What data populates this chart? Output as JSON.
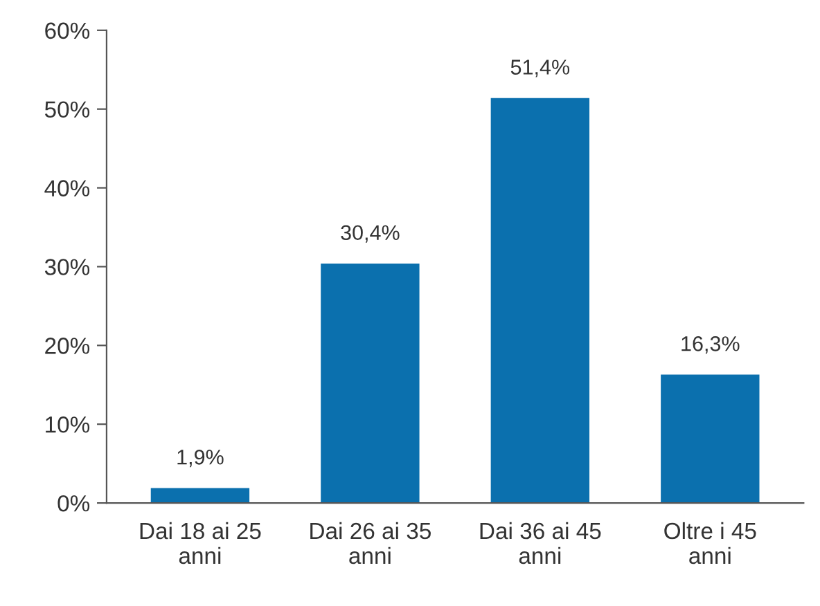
{
  "chart_data": {
    "type": "bar",
    "categories": [
      "Dai 18 ai 25 anni",
      "Dai 26 ai 35 anni",
      "Dai 36 ai 45 anni",
      "Oltre i 45 anni"
    ],
    "values": [
      1.9,
      30.4,
      51.4,
      16.3
    ],
    "color": "#0b70ae",
    "value_labels": [
      "1,9%",
      "30,4%",
      "51,4%",
      "16,3%"
    ],
    "ylim": [
      0,
      60
    ],
    "yticks": [
      {
        "value": 0,
        "label": "0%"
      },
      {
        "value": 10,
        "label": "10%"
      },
      {
        "value": 20,
        "label": "20%"
      },
      {
        "value": 30,
        "label": "30%"
      },
      {
        "value": 40,
        "label": "40%"
      },
      {
        "value": 50,
        "label": "50%"
      },
      {
        "value": 60,
        "label": "60%"
      }
    ],
    "grid": false,
    "legend": false
  }
}
